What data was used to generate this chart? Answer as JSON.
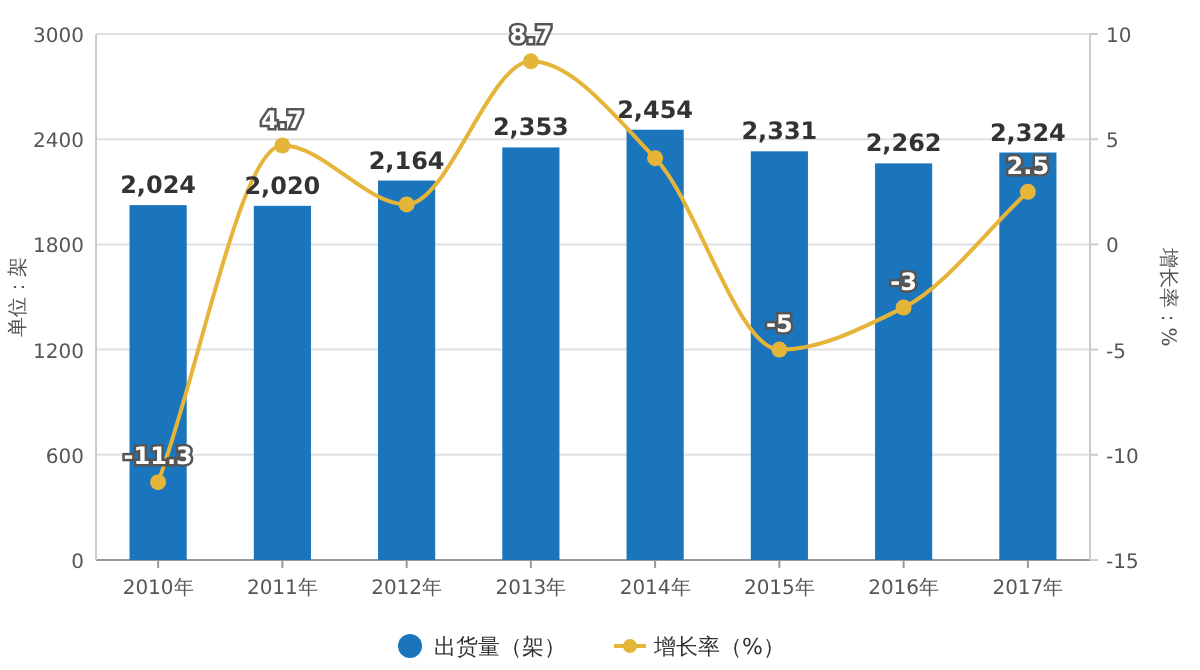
{
  "chart_data": {
    "type": "bar",
    "categories": [
      "2010年",
      "2011年",
      "2012年",
      "2013年",
      "2014年",
      "2015年",
      "2016年",
      "2017年"
    ],
    "series": [
      {
        "name": "出货量（架）",
        "color": "#1a75bc",
        "values": [
          2024,
          2020,
          2164,
          2353,
          2454,
          2331,
          2262,
          2324
        ],
        "value_labels": [
          "2,024",
          "2,020",
          "2,164",
          "2,353",
          "2,454",
          "2,331",
          "2,262",
          "2,324"
        ]
      },
      {
        "name": "增长率（%）",
        "type": "line",
        "axis": "y2",
        "color": "#e5b53a",
        "marker": "circle",
        "values": [
          -11.3,
          4.7,
          1.9,
          8.7,
          4.1,
          -5,
          -3,
          2.5
        ],
        "value_labels": [
          "-11.3",
          "4.7",
          null,
          "8.7",
          null,
          "-5",
          "-3",
          "2.5"
        ]
      }
    ],
    "ylabel": "单位：架",
    "y2label": "增长率：%",
    "ylim": [
      0,
      3000
    ],
    "yticks": [
      0,
      600,
      1200,
      1800,
      2400,
      3000
    ],
    "y2lim": [
      -15,
      10
    ],
    "y2ticks": [
      -15,
      -10,
      -5,
      0,
      5,
      10
    ],
    "grid": "y",
    "legend": "bottom"
  }
}
